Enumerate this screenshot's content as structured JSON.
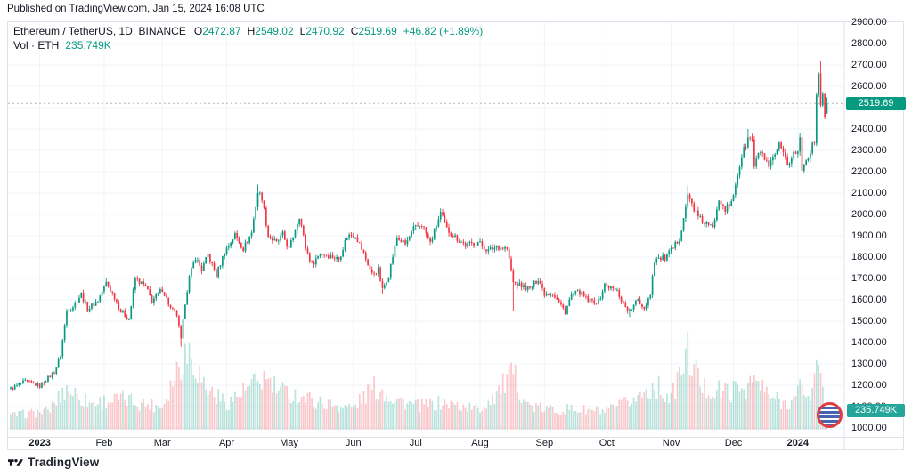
{
  "published_line": "Published on TradingView.com, Jan 15, 2024 16:08 UTC",
  "watermark": "TradingView",
  "legend": {
    "symbol_line": {
      "title": "Ethereum / TetherUS, 1D, BINANCE",
      "o_label": "O",
      "o": "2472.87",
      "h_label": "H",
      "h": "2549.02",
      "l_label": "L",
      "l": "2470.92",
      "c_label": "C",
      "c": "2519.69",
      "change": "+46.82 (+1.89%)"
    },
    "volume_line": {
      "label": "Vol · ETH",
      "value": "235.749K"
    }
  },
  "badges": {
    "last_price": "2519.69",
    "last_volume": "235.749K"
  },
  "price_axis": {
    "min": 1000,
    "max": 2900,
    "step": 100
  },
  "time_axis": {
    "labels": [
      {
        "label": "2023",
        "date": "2023-01-01",
        "bold": true
      },
      {
        "label": "Feb",
        "date": "2023-02-01"
      },
      {
        "label": "Mar",
        "date": "2023-03-01"
      },
      {
        "label": "Apr",
        "date": "2023-04-01"
      },
      {
        "label": "May",
        "date": "2023-05-01"
      },
      {
        "label": "Jun",
        "date": "2023-06-01"
      },
      {
        "label": "Jul",
        "date": "2023-07-01"
      },
      {
        "label": "Aug",
        "date": "2023-08-01"
      },
      {
        "label": "Sep",
        "date": "2023-09-01"
      },
      {
        "label": "Oct",
        "date": "2023-10-01"
      },
      {
        "label": "Nov",
        "date": "2023-11-01"
      },
      {
        "label": "Dec",
        "date": "2023-12-01"
      },
      {
        "label": "2024",
        "date": "2024-01-01",
        "bold": true
      }
    ]
  },
  "colors": {
    "up": "#089981",
    "down": "#F23645",
    "vol_up": "rgba(8,153,129,0.28)",
    "vol_down": "rgba(242,54,69,0.28)",
    "grid": "#f0f3fa",
    "frame": "#e0e3eb",
    "text": "#131722",
    "value_text": "#089981",
    "price_line": "#b6b9c2",
    "price_badge_bg": "#089981",
    "vol_badge_bg": "#26a69a"
  },
  "chart_data": {
    "type": "candlestick+volume",
    "title": "Ethereum / TetherUS",
    "interval": "1D",
    "exchange": "BINANCE",
    "start_date": "2022-12-18",
    "end_date": "2024-01-15",
    "ylim": [
      1000,
      2900
    ],
    "grid": true,
    "last_candle": {
      "open": 2472.87,
      "high": 2549.02,
      "low": 2470.92,
      "close": 2519.69,
      "change": 46.82,
      "change_pct": 1.89,
      "volume_k": 235.749
    },
    "close_anchors": [
      [
        "2022-12-18",
        1183
      ],
      [
        "2022-12-25",
        1218
      ],
      [
        "2023-01-01",
        1196
      ],
      [
        "2023-01-08",
        1262
      ],
      [
        "2023-01-11",
        1340
      ],
      [
        "2023-01-14",
        1550
      ],
      [
        "2023-01-17",
        1570
      ],
      [
        "2023-01-21",
        1627
      ],
      [
        "2023-01-24",
        1555
      ],
      [
        "2023-01-29",
        1598
      ],
      [
        "2023-02-02",
        1680
      ],
      [
        "2023-02-06",
        1615
      ],
      [
        "2023-02-09",
        1545
      ],
      [
        "2023-02-13",
        1510
      ],
      [
        "2023-02-16",
        1700
      ],
      [
        "2023-02-21",
        1660
      ],
      [
        "2023-02-24",
        1595
      ],
      [
        "2023-03-01",
        1650
      ],
      [
        "2023-03-05",
        1560
      ],
      [
        "2023-03-08",
        1530
      ],
      [
        "2023-03-10",
        1410
      ],
      [
        "2023-03-12",
        1590
      ],
      [
        "2023-03-14",
        1705
      ],
      [
        "2023-03-17",
        1800
      ],
      [
        "2023-03-20",
        1740
      ],
      [
        "2023-03-23",
        1810
      ],
      [
        "2023-03-27",
        1715
      ],
      [
        "2023-03-31",
        1825
      ],
      [
        "2023-04-05",
        1905
      ],
      [
        "2023-04-09",
        1840
      ],
      [
        "2023-04-13",
        1915
      ],
      [
        "2023-04-16",
        2105
      ],
      [
        "2023-04-18",
        2080
      ],
      [
        "2023-04-21",
        1900
      ],
      [
        "2023-04-25",
        1865
      ],
      [
        "2023-04-28",
        1905
      ],
      [
        "2023-05-01",
        1835
      ],
      [
        "2023-05-06",
        1995
      ],
      [
        "2023-05-09",
        1845
      ],
      [
        "2023-05-12",
        1765
      ],
      [
        "2023-05-16",
        1820
      ],
      [
        "2023-05-21",
        1805
      ],
      [
        "2023-05-25",
        1790
      ],
      [
        "2023-05-29",
        1900
      ],
      [
        "2023-06-02",
        1905
      ],
      [
        "2023-06-06",
        1815
      ],
      [
        "2023-06-10",
        1720
      ],
      [
        "2023-06-13",
        1740
      ],
      [
        "2023-06-15",
        1645
      ],
      [
        "2023-06-18",
        1720
      ],
      [
        "2023-06-22",
        1890
      ],
      [
        "2023-06-26",
        1860
      ],
      [
        "2023-06-30",
        1930
      ],
      [
        "2023-07-04",
        1955
      ],
      [
        "2023-07-08",
        1865
      ],
      [
        "2023-07-13",
        2005
      ],
      [
        "2023-07-16",
        1930
      ],
      [
        "2023-07-20",
        1895
      ],
      [
        "2023-07-25",
        1855
      ],
      [
        "2023-07-31",
        1870
      ],
      [
        "2023-08-05",
        1830
      ],
      [
        "2023-08-09",
        1850
      ],
      [
        "2023-08-14",
        1840
      ],
      [
        "2023-08-17",
        1680
      ],
      [
        "2023-08-21",
        1665
      ],
      [
        "2023-08-25",
        1650
      ],
      [
        "2023-08-29",
        1700
      ],
      [
        "2023-09-01",
        1630
      ],
      [
        "2023-09-05",
        1630
      ],
      [
        "2023-09-11",
        1545
      ],
      [
        "2023-09-14",
        1625
      ],
      [
        "2023-09-18",
        1635
      ],
      [
        "2023-09-22",
        1595
      ],
      [
        "2023-09-27",
        1590
      ],
      [
        "2023-09-30",
        1670
      ],
      [
        "2023-10-03",
        1655
      ],
      [
        "2023-10-06",
        1640
      ],
      [
        "2023-10-09",
        1580
      ],
      [
        "2023-10-12",
        1545
      ],
      [
        "2023-10-16",
        1600
      ],
      [
        "2023-10-19",
        1560
      ],
      [
        "2023-10-22",
        1630
      ],
      [
        "2023-10-24",
        1790
      ],
      [
        "2023-10-29",
        1795
      ],
      [
        "2023-11-02",
        1840
      ],
      [
        "2023-11-05",
        1890
      ],
      [
        "2023-11-09",
        2085
      ],
      [
        "2023-11-11",
        2050
      ],
      [
        "2023-11-14",
        1985
      ],
      [
        "2023-11-17",
        1960
      ],
      [
        "2023-11-21",
        1935
      ],
      [
        "2023-11-24",
        2080
      ],
      [
        "2023-11-27",
        2025
      ],
      [
        "2023-11-30",
        2050
      ],
      [
        "2023-12-03",
        2190
      ],
      [
        "2023-12-05",
        2270
      ],
      [
        "2023-12-08",
        2355
      ],
      [
        "2023-12-10",
        2350
      ],
      [
        "2023-12-11",
        2225
      ],
      [
        "2023-12-14",
        2300
      ],
      [
        "2023-12-18",
        2215
      ],
      [
        "2023-12-23",
        2320
      ],
      [
        "2023-12-27",
        2230
      ],
      [
        "2023-12-30",
        2290
      ],
      [
        "2024-01-01",
        2290
      ],
      [
        "2024-01-02",
        2355
      ],
      [
        "2024-01-03",
        2210
      ],
      [
        "2024-01-05",
        2250
      ],
      [
        "2024-01-08",
        2330
      ],
      [
        "2024-01-09",
        2340
      ],
      [
        "2024-01-10",
        2580
      ],
      [
        "2024-01-11",
        2640
      ],
      [
        "2024-01-12",
        2520
      ],
      [
        "2024-01-13",
        2575
      ],
      [
        "2024-01-14",
        2472
      ],
      [
        "2024-01-15",
        2519.69
      ]
    ],
    "volume_anchors_k": [
      [
        "2022-12-18",
        170
      ],
      [
        "2023-01-05",
        230
      ],
      [
        "2023-01-14",
        520
      ],
      [
        "2023-01-25",
        330
      ],
      [
        "2023-02-10",
        380
      ],
      [
        "2023-02-20",
        320
      ],
      [
        "2023-03-01",
        290
      ],
      [
        "2023-03-10",
        880
      ],
      [
        "2023-03-14",
        1000
      ],
      [
        "2023-03-22",
        520
      ],
      [
        "2023-04-01",
        330
      ],
      [
        "2023-04-19",
        640
      ],
      [
        "2023-04-26",
        480
      ],
      [
        "2023-05-06",
        420
      ],
      [
        "2023-05-15",
        340
      ],
      [
        "2023-06-01",
        270
      ],
      [
        "2023-06-10",
        520
      ],
      [
        "2023-06-15",
        480
      ],
      [
        "2023-06-22",
        380
      ],
      [
        "2023-07-01",
        290
      ],
      [
        "2023-07-14",
        330
      ],
      [
        "2023-08-01",
        250
      ],
      [
        "2023-08-17",
        680
      ],
      [
        "2023-08-24",
        300
      ],
      [
        "2023-09-01",
        250
      ],
      [
        "2023-09-15",
        250
      ],
      [
        "2023-10-01",
        220
      ],
      [
        "2023-10-16",
        400
      ],
      [
        "2023-10-24",
        560
      ],
      [
        "2023-11-01",
        380
      ],
      [
        "2023-11-09",
        960
      ],
      [
        "2023-11-16",
        520
      ],
      [
        "2023-11-22",
        480
      ],
      [
        "2023-12-01",
        480
      ],
      [
        "2023-12-08",
        560
      ],
      [
        "2023-12-11",
        620
      ],
      [
        "2023-12-18",
        420
      ],
      [
        "2023-12-25",
        330
      ],
      [
        "2023-12-31",
        380
      ],
      [
        "2024-01-02",
        520
      ],
      [
        "2024-01-03",
        640
      ],
      [
        "2024-01-05",
        380
      ],
      [
        "2024-01-08",
        440
      ],
      [
        "2024-01-10",
        860
      ],
      [
        "2024-01-11",
        940
      ],
      [
        "2024-01-12",
        800
      ],
      [
        "2024-01-13",
        640
      ],
      [
        "2024-01-14",
        380
      ],
      [
        "2024-01-15",
        235.749
      ]
    ],
    "overrides": {
      "2023-03-10": {
        "low": 1380
      },
      "2023-04-16": {
        "high": 2140
      },
      "2023-06-15": {
        "low": 1625
      },
      "2023-07-13": {
        "high": 2028
      },
      "2023-08-17": {
        "low": 1550
      },
      "2023-09-11": {
        "low": 1530
      },
      "2023-10-12": {
        "low": 1520
      },
      "2023-11-09": {
        "high": 2135
      },
      "2023-12-08": {
        "high": 2400
      },
      "2024-01-03": {
        "low": 2100
      },
      "2024-01-12": {
        "high": 2717
      },
      "2024-01-15": {
        "open": 2472.87,
        "high": 2549.02,
        "low": 2470.92,
        "close": 2519.69
      }
    }
  }
}
